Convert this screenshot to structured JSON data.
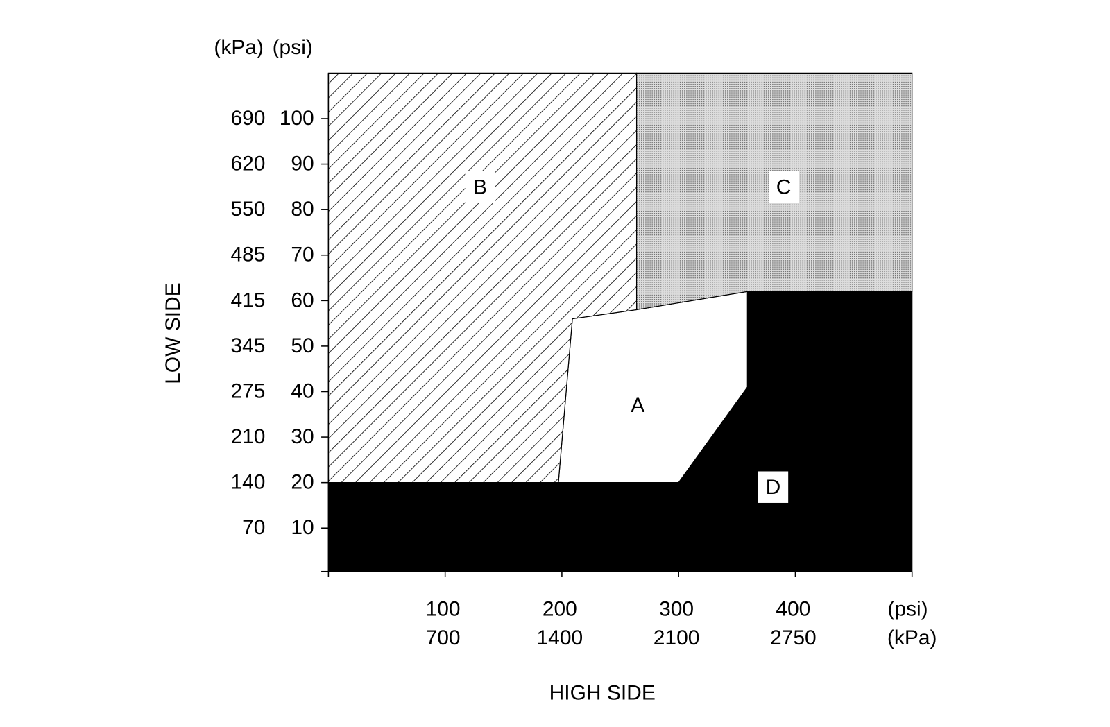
{
  "chart_data": {
    "type": "region",
    "x_title": "HIGH SIDE",
    "y_title": "LOW SIDE",
    "x_units": [
      "(psi)",
      "(kPa)"
    ],
    "y_units": [
      "(kPa)",
      "(psi)"
    ],
    "xlim": [
      0,
      500
    ],
    "ylim": [
      0,
      110
    ],
    "xticks": [
      100,
      200,
      300,
      400
    ],
    "xticks_kpa": [
      700,
      1400,
      2100,
      2750
    ],
    "yticks": [
      10,
      20,
      30,
      40,
      50,
      60,
      70,
      80,
      90,
      100
    ],
    "yticks_kpa": [
      70,
      140,
      210,
      275,
      345,
      415,
      485,
      550,
      620,
      690
    ],
    "regions": [
      {
        "name": "A",
        "fill": "solid",
        "color": "#ffffff",
        "points": [
          [
            197,
            20
          ],
          [
            209,
            56
          ],
          [
            264,
            58
          ],
          [
            359,
            62
          ],
          [
            359,
            41
          ],
          [
            300,
            20
          ]
        ]
      },
      {
        "name": "B",
        "fill": "hatch",
        "color": "#000000",
        "points": [
          [
            0,
            20
          ],
          [
            0,
            110
          ],
          [
            264,
            110
          ],
          [
            264,
            58
          ],
          [
            209,
            56
          ],
          [
            197,
            20
          ]
        ]
      },
      {
        "name": "C",
        "fill": "dots",
        "color": "#c4c4c4",
        "points": [
          [
            264,
            110
          ],
          [
            500,
            110
          ],
          [
            500,
            62
          ],
          [
            359,
            62
          ],
          [
            264,
            58
          ]
        ]
      },
      {
        "name": "D",
        "fill": "solid",
        "color": "#000000",
        "points": [
          [
            0,
            0
          ],
          [
            500,
            0
          ],
          [
            500,
            62
          ],
          [
            359,
            62
          ],
          [
            359,
            41
          ],
          [
            300,
            20
          ],
          [
            0,
            20
          ]
        ]
      }
    ]
  }
}
